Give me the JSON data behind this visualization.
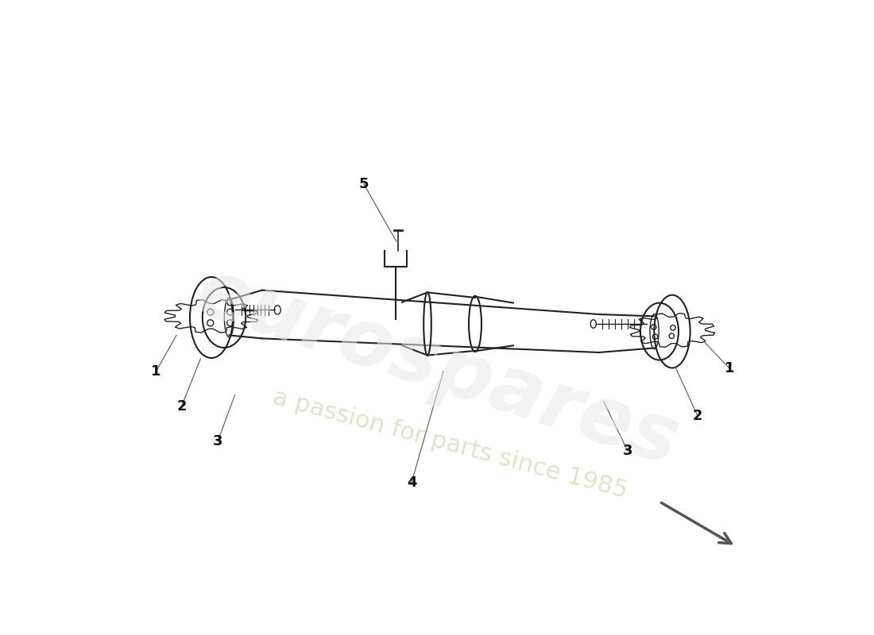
{
  "bg_color": "#ffffff",
  "line_color": "#222222",
  "watermark_text1": "eurospares",
  "watermark_text2": "a passion for parts since 1985",
  "watermark_color": "#d0d0d0",
  "arrow_color": "#555555",
  "label_color": "#111111",
  "part_numbers": [
    "1",
    "2",
    "3",
    "4",
    "5"
  ],
  "label_positions_left": {
    "1": [
      0.06,
      0.415
    ],
    "2": [
      0.1,
      0.365
    ],
    "3": [
      0.155,
      0.315
    ]
  },
  "label_positions_center": {
    "4": [
      0.46,
      0.245
    ],
    "5": [
      0.38,
      0.71
    ]
  },
  "label_positions_right": {
    "1": [
      0.96,
      0.42
    ],
    "2": [
      0.9,
      0.35
    ],
    "3": [
      0.8,
      0.295
    ]
  }
}
